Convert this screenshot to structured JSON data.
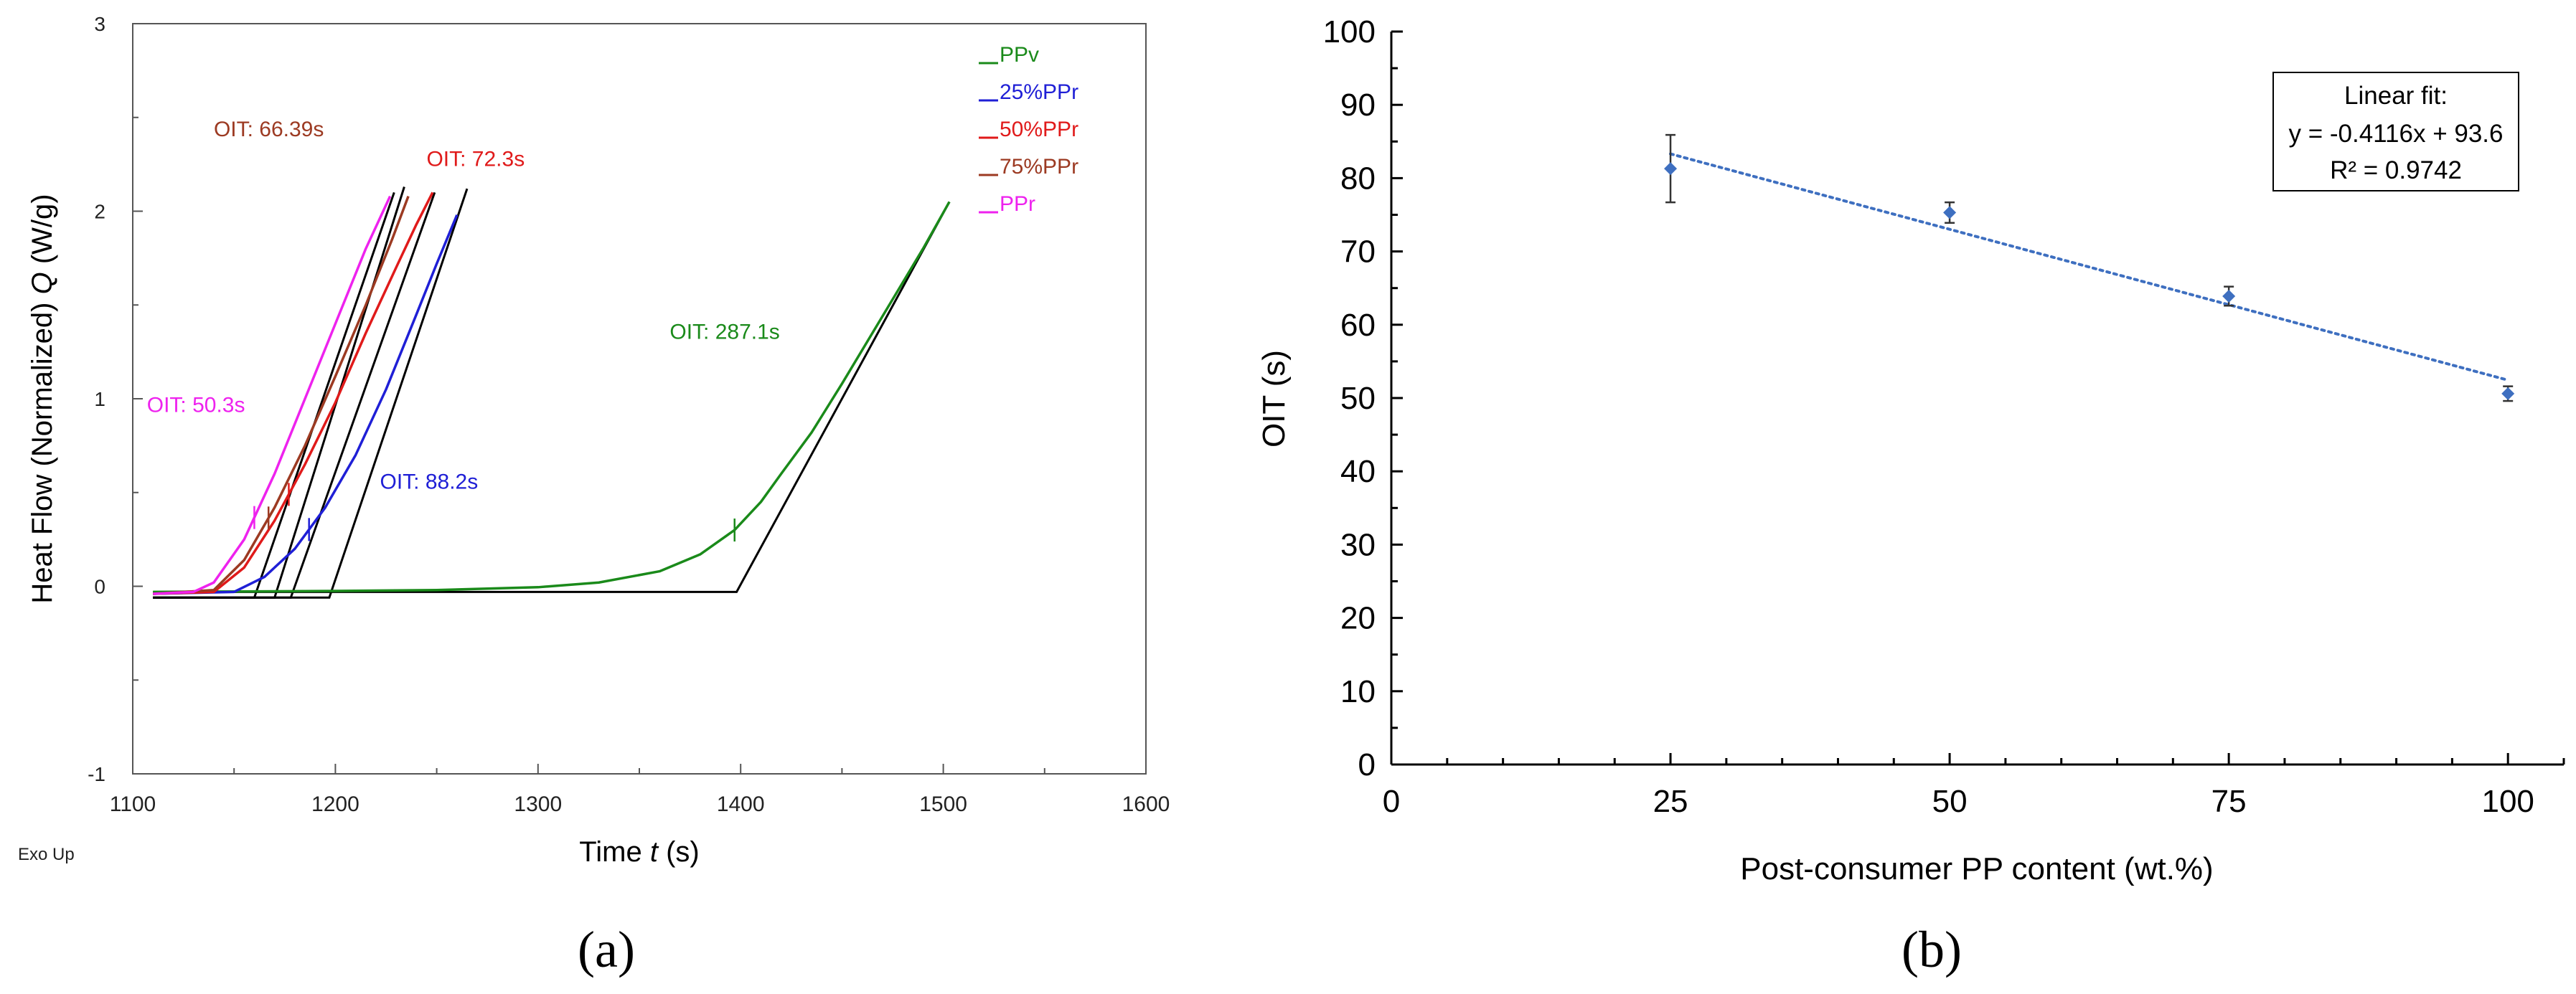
{
  "chart_data": [
    {
      "panel_label": "(a)",
      "type": "line",
      "xlabel": "Time",
      "xlabel_var": "t",
      "xlabel_unit": "(s)",
      "ylabel": "Heat Flow (Normalized)",
      "ylabel_var": "Q",
      "ylabel_unit": "(W/g)",
      "xlim": [
        1100,
        1600
      ],
      "ylim": [
        -1,
        3
      ],
      "xticks": [
        "1100",
        "1200",
        "1300",
        "1400",
        "1500",
        "1600"
      ],
      "yticks": [
        "-1",
        "0",
        "1",
        "2",
        "3"
      ],
      "corner_note": "Exo Up",
      "grid": false,
      "legend_position": "top-right",
      "legend": [
        {
          "label": "PPv",
          "color": "#1a8a1a"
        },
        {
          "label": "25%PPr",
          "color": "#1f1fd6"
        },
        {
          "label": "50%PPr",
          "color": "#e01a1a"
        },
        {
          "label": "75%PPr",
          "color": "#9c3a22"
        },
        {
          "label": "PPr",
          "color": "#ee22ee"
        }
      ],
      "series": [
        {
          "name": "PPv",
          "color": "#1a8a1a",
          "x": [
            1110,
            1200,
            1250,
            1300,
            1330,
            1360,
            1380,
            1397,
            1410,
            1420,
            1435,
            1450,
            1465,
            1480,
            1490,
            1503
          ],
          "y": [
            -0.03,
            -0.025,
            -0.02,
            -0.005,
            0.02,
            0.08,
            0.17,
            0.3,
            0.45,
            0.6,
            0.82,
            1.08,
            1.35,
            1.62,
            1.8,
            2.05
          ],
          "tick_x": 1397
        },
        {
          "name": "25%PPr",
          "color": "#1f1fd6",
          "x": [
            1110,
            1150,
            1165,
            1180,
            1195,
            1210,
            1225,
            1240,
            1250,
            1260
          ],
          "y": [
            -0.04,
            -0.03,
            0.05,
            0.2,
            0.42,
            0.7,
            1.05,
            1.45,
            1.72,
            1.98
          ],
          "tick_x": 1187
        },
        {
          "name": "50%PPr",
          "color": "#e01a1a",
          "x": [
            1110,
            1140,
            1155,
            1170,
            1185,
            1200,
            1215,
            1230,
            1240,
            1248
          ],
          "y": [
            -0.04,
            -0.03,
            0.1,
            0.35,
            0.65,
            0.98,
            1.35,
            1.7,
            1.93,
            2.1
          ],
          "tick_x": 1177
        },
        {
          "name": "75%PPr",
          "color": "#9c3a22",
          "x": [
            1110,
            1140,
            1155,
            1170,
            1185,
            1200,
            1215,
            1228,
            1236
          ],
          "y": [
            -0.04,
            -0.02,
            0.14,
            0.42,
            0.75,
            1.12,
            1.5,
            1.85,
            2.08
          ],
          "tick_x": 1167
        },
        {
          "name": "PPr",
          "color": "#ee22ee",
          "x": [
            1110,
            1130,
            1140,
            1155,
            1170,
            1185,
            1200,
            1215,
            1227
          ],
          "y": [
            -0.04,
            -0.03,
            0.02,
            0.25,
            0.6,
            1.0,
            1.4,
            1.8,
            2.08
          ],
          "tick_x": 1160
        }
      ],
      "tangents": [
        {
          "x": [
            1110,
            1398,
            1503
          ],
          "y": [
            -0.03,
            -0.03,
            2.05
          ]
        },
        {
          "x": [
            1110,
            1197,
            1265
          ],
          "y": [
            -0.06,
            -0.06,
            2.12
          ]
        },
        {
          "x": [
            1110,
            1178,
            1249
          ],
          "y": [
            -0.06,
            -0.06,
            2.1
          ]
        },
        {
          "x": [
            1110,
            1170,
            1234
          ],
          "y": [
            -0.06,
            -0.06,
            2.13
          ]
        },
        {
          "x": [
            1110,
            1160,
            1229
          ],
          "y": [
            -0.06,
            -0.06,
            2.1
          ]
        }
      ],
      "annotations": [
        {
          "text": "OIT: 287.1s",
          "x": 1365,
          "y": 1.32,
          "color": "#1a8a1a"
        },
        {
          "text": "OIT: 88.2s",
          "x": 1222,
          "y": 0.52,
          "color": "#1f1fd6"
        },
        {
          "text": "OIT: 72.3s",
          "x": 1245,
          "y": 2.24,
          "color": "#e01a1a"
        },
        {
          "text": "OIT: 66.39s",
          "x": 1140,
          "y": 2.4,
          "color": "#9c3a22"
        },
        {
          "text": "OIT: 50.3s",
          "x": 1107,
          "y": 0.93,
          "color": "#ee22ee"
        }
      ]
    },
    {
      "panel_label": "(b)",
      "type": "scatter",
      "xlabel": "Post-consumer PP content (wt.%)",
      "ylabel": "OIT (s)",
      "xlim": [
        0,
        105
      ],
      "ylim": [
        0,
        100
      ],
      "xticks": [
        "0",
        "25",
        "50",
        "75",
        "100"
      ],
      "yticks": [
        "0",
        "10",
        "20",
        "30",
        "40",
        "50",
        "60",
        "70",
        "80",
        "90",
        "100"
      ],
      "grid": false,
      "point_color": "#3e6fc0",
      "trend_color": "#3e6fc0",
      "points": [
        {
          "x": 25,
          "y": 81.3,
          "err": 4.6
        },
        {
          "x": 50,
          "y": 75.3,
          "err": 1.4
        },
        {
          "x": 75,
          "y": 63.9,
          "err": 1.3
        },
        {
          "x": 100,
          "y": 50.6,
          "err": 1.0
        }
      ],
      "fit": {
        "slope": -0.4116,
        "intercept": 93.6,
        "x_range": [
          25,
          100
        ]
      },
      "fit_box": {
        "title": "Linear fit:",
        "equation": "y = -0.4116x + 93.6",
        "r2": "R² = 0.9742"
      }
    }
  ]
}
